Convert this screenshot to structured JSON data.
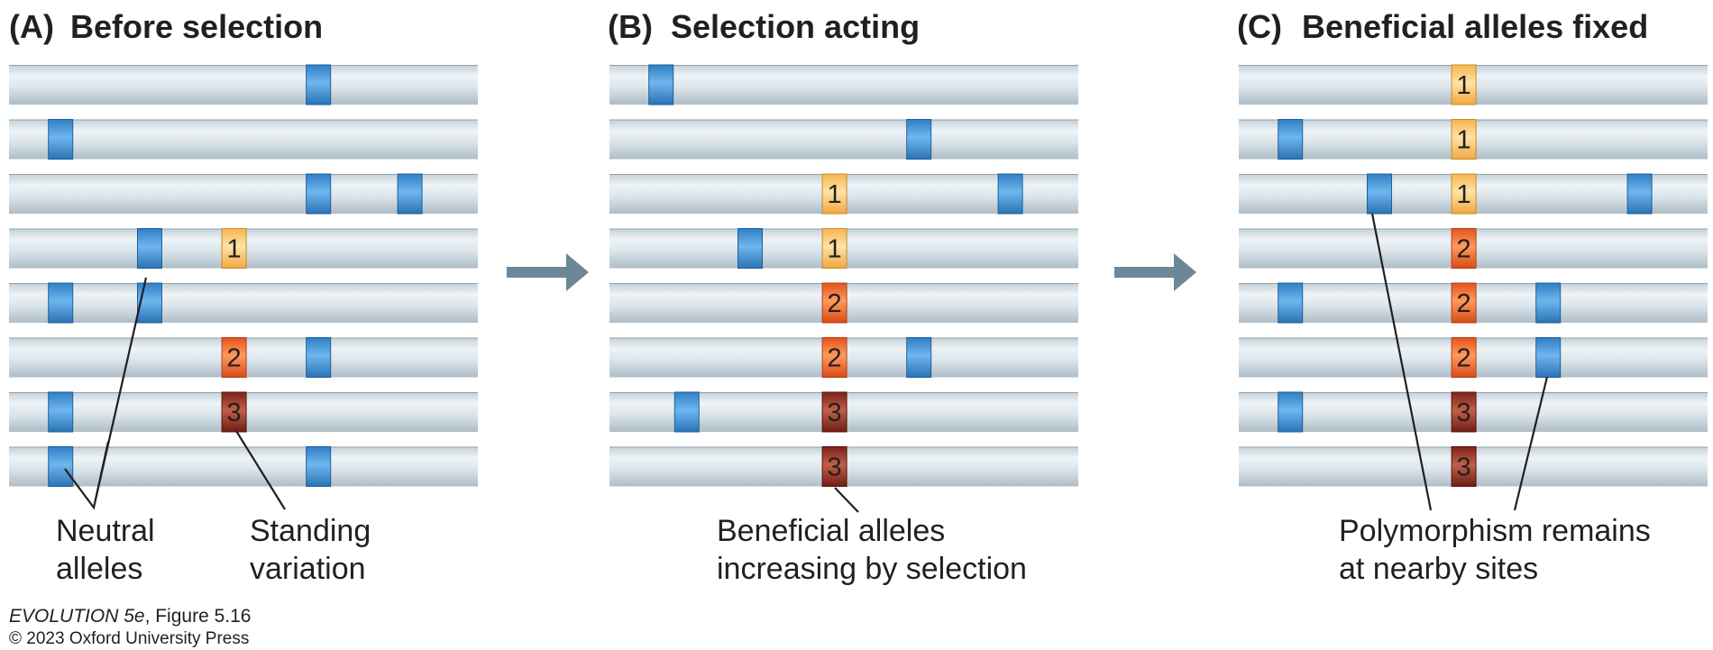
{
  "colors": {
    "neutral_allele": "#4a9fe0",
    "allele_1": "#ffd07a",
    "allele_2": "#ff7a3a",
    "allele_3": "#a23a2a",
    "chromosome": "#dfe8ee",
    "arrow": "#6e8796"
  },
  "panels": [
    {
      "letter": "(A)",
      "title": "Before selection",
      "notes": [
        {
          "lines": [
            "Neutral",
            "alleles"
          ]
        },
        {
          "lines": [
            "Standing",
            "variation"
          ]
        }
      ],
      "chromosomes": [
        {
          "neutral": [
            0.66
          ],
          "beneficial": []
        },
        {
          "neutral": [
            0.11
          ],
          "beneficial": []
        },
        {
          "neutral": [
            0.66,
            0.855
          ],
          "beneficial": []
        },
        {
          "neutral": [
            0.3
          ],
          "beneficial": [
            {
              "pos": 0.48,
              "label": "1",
              "type": 1
            }
          ]
        },
        {
          "neutral": [
            0.11,
            0.3
          ],
          "beneficial": []
        },
        {
          "neutral": [
            0.66
          ],
          "beneficial": [
            {
              "pos": 0.48,
              "label": "2",
              "type": 2
            }
          ]
        },
        {
          "neutral": [
            0.11
          ],
          "beneficial": [
            {
              "pos": 0.48,
              "label": "3",
              "type": 3
            }
          ]
        },
        {
          "neutral": [
            0.11,
            0.66
          ],
          "beneficial": []
        }
      ]
    },
    {
      "letter": "(B)",
      "title": "Selection acting",
      "notes": [
        {
          "lines": [
            "Beneficial alleles",
            "increasing by selection"
          ]
        }
      ],
      "chromosomes": [
        {
          "neutral": [
            0.11
          ],
          "beneficial": []
        },
        {
          "neutral": [
            0.66
          ],
          "beneficial": []
        },
        {
          "neutral": [
            0.855
          ],
          "beneficial": [
            {
              "pos": 0.48,
              "label": "1",
              "type": 1
            }
          ]
        },
        {
          "neutral": [
            0.3
          ],
          "beneficial": [
            {
              "pos": 0.48,
              "label": "1",
              "type": 1
            }
          ]
        },
        {
          "neutral": [],
          "beneficial": [
            {
              "pos": 0.48,
              "label": "2",
              "type": 2
            }
          ]
        },
        {
          "neutral": [
            0.66
          ],
          "beneficial": [
            {
              "pos": 0.48,
              "label": "2",
              "type": 2
            }
          ]
        },
        {
          "neutral": [
            0.165
          ],
          "beneficial": [
            {
              "pos": 0.48,
              "label": "3",
              "type": 3
            }
          ]
        },
        {
          "neutral": [],
          "beneficial": [
            {
              "pos": 0.48,
              "label": "3",
              "type": 3
            }
          ]
        }
      ]
    },
    {
      "letter": "(C)",
      "title": "Beneficial alleles fixed",
      "notes": [
        {
          "lines": [
            "Polymorphism remains",
            "at nearby sites"
          ]
        }
      ],
      "chromosomes": [
        {
          "neutral": [],
          "beneficial": [
            {
              "pos": 0.48,
              "label": "1",
              "type": 1
            }
          ]
        },
        {
          "neutral": [
            0.11
          ],
          "beneficial": [
            {
              "pos": 0.48,
              "label": "1",
              "type": 1
            }
          ]
        },
        {
          "neutral": [
            0.3,
            0.855
          ],
          "beneficial": [
            {
              "pos": 0.48,
              "label": "1",
              "type": 1
            }
          ]
        },
        {
          "neutral": [],
          "beneficial": [
            {
              "pos": 0.48,
              "label": "2",
              "type": 2
            }
          ]
        },
        {
          "neutral": [
            0.11,
            0.66
          ],
          "beneficial": [
            {
              "pos": 0.48,
              "label": "2",
              "type": 2
            }
          ]
        },
        {
          "neutral": [
            0.66
          ],
          "beneficial": [
            {
              "pos": 0.48,
              "label": "2",
              "type": 2
            }
          ]
        },
        {
          "neutral": [
            0.11
          ],
          "beneficial": [
            {
              "pos": 0.48,
              "label": "3",
              "type": 3
            }
          ]
        },
        {
          "neutral": [],
          "beneficial": [
            {
              "pos": 0.48,
              "label": "3",
              "type": 3
            }
          ]
        }
      ]
    }
  ],
  "credit": {
    "book": "EVOLUTION 5e",
    "figure": ", Figure 5.16",
    "copyright": "© 2023 Oxford University Press"
  }
}
